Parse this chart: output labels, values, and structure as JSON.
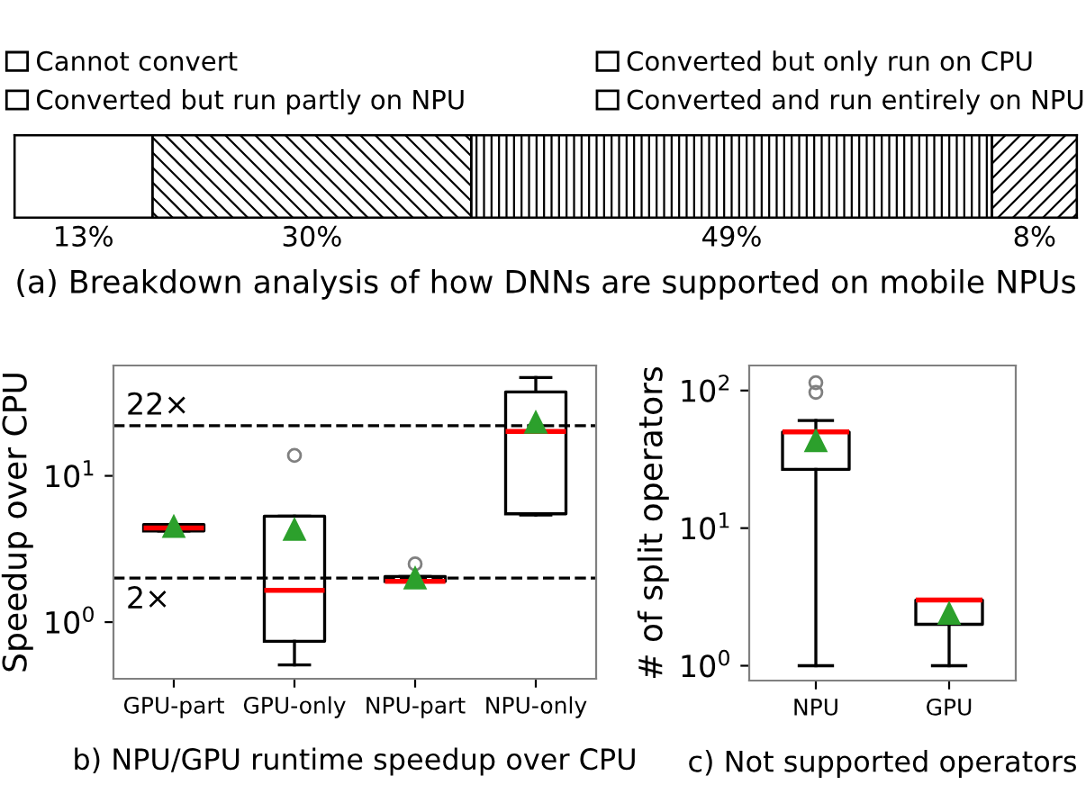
{
  "chart_data": [
    {
      "type": "bar",
      "orientation": "horizontal",
      "stacked": true,
      "title": "(a) Breakdown analysis of how DNNs are supported on mobile NPUs",
      "categories": [
        null
      ],
      "legend": "top",
      "series": [
        {
          "name": "Cannot convert",
          "color": "#ffffff",
          "values": [
            13
          ],
          "value_labels": [
            "13%"
          ]
        },
        {
          "name": "Converted but only run on CPU",
          "color": "#ffffff",
          "values": [
            30
          ],
          "value_labels": [
            "30%"
          ]
        },
        {
          "name": "Converted but run partly on NPU",
          "color": "#ffffff",
          "values": [
            49
          ],
          "value_labels": [
            "49%"
          ]
        },
        {
          "name": "Converted and run entirely on NPU",
          "color": "#ffffff",
          "values": [
            8
          ],
          "value_labels": [
            "8%"
          ]
        }
      ]
    },
    {
      "type": "box",
      "title": "b) NPU/GPU runtime speedup over CPU",
      "ylabel": "Speedup over CPU",
      "log": "y",
      "ylim": [
        0.41,
        56.8
      ],
      "yticks": [
        {
          "value": 1,
          "label": "10$^{0}$"
        },
        {
          "value": 10,
          "label": "10$^{1}$"
        }
      ],
      "categories": [
        "GPU-part",
        "GPU-only",
        "NPU-part",
        "NPU-only"
      ],
      "boxes": [
        {
          "low": 4.2,
          "q1": 4.2,
          "median": 4.4,
          "q3": 4.65,
          "high": 4.65,
          "mean": 4.5
        },
        {
          "low": 0.51,
          "q1": 0.74,
          "median": 1.65,
          "q3": 5.3,
          "high": 5.3,
          "mean": 4.3,
          "outliers": [
            13.8
          ]
        },
        {
          "low": 1.9,
          "q1": 1.9,
          "median": 1.9,
          "q3": 2.05,
          "high": 2.05,
          "mean": 2.0,
          "outliers": [
            2.5
          ]
        },
        {
          "low": 5.4,
          "q1": 5.5,
          "median": 20.1,
          "q3": 37.5,
          "high": 47,
          "mean": 23.2
        }
      ],
      "ref_lines": [
        {
          "axis": "y",
          "value": 22,
          "label": "22×",
          "line_style": "dashed",
          "color": "#000000"
        },
        {
          "axis": "y",
          "value": 2,
          "label": "2×",
          "line_style": "dashed",
          "color": "#000000"
        }
      ]
    },
    {
      "type": "box",
      "title": "c) Not supported operators",
      "ylabel": "# of split operators",
      "log": "y",
      "ylim": [
        0.78,
        152
      ],
      "yticks": [
        {
          "value": 1,
          "label": "10$^{0}$"
        },
        {
          "value": 10,
          "label": "10$^{1}$"
        },
        {
          "value": 100,
          "label": "10$^{2}$"
        }
      ],
      "categories": [
        "NPU",
        "GPU"
      ],
      "boxes": [
        {
          "low": 1,
          "q1": 26.7,
          "median": 50,
          "q3": 50,
          "high": 60.6,
          "mean": 43,
          "outliers": [
            97,
            114
          ]
        },
        {
          "low": 1,
          "q1": 2,
          "median": 3,
          "q3": 3,
          "high": 3,
          "mean": 2.4
        }
      ]
    }
  ]
}
